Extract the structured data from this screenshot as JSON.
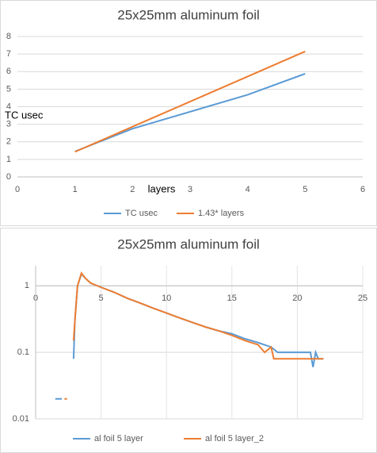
{
  "chart_data": [
    {
      "type": "line",
      "title": "25x25mm aluminum foil",
      "x_label": "layers",
      "y_label": "TC usec",
      "xlim": [
        0,
        6
      ],
      "xticks": [
        0,
        1,
        2,
        3,
        4,
        5,
        6
      ],
      "ylim": [
        0,
        8
      ],
      "yticks": [
        0,
        1,
        2,
        3,
        4,
        5,
        6,
        7,
        8
      ],
      "grid": true,
      "log_scale": false,
      "legend": "bottom",
      "series": [
        {
          "name": "TC usec",
          "color": "#5b9bd5",
          "x": [
            1,
            2,
            4,
            5
          ],
          "values": [
            1.45,
            2.75,
            4.68,
            5.88
          ]
        },
        {
          "name": "1.43* layers",
          "color": "#ed7d31",
          "x": [
            1,
            2,
            3,
            4,
            5
          ],
          "values": [
            1.43,
            2.86,
            4.29,
            5.72,
            7.15
          ]
        }
      ]
    },
    {
      "type": "line",
      "title": "25x25mm aluminum foil",
      "xlim": [
        0,
        25
      ],
      "xticks": [
        0,
        5,
        10,
        15,
        20,
        25
      ],
      "ylim": [
        0.01,
        2
      ],
      "yticks": [
        0.01,
        0.1,
        1
      ],
      "x_axis_crosses": 1,
      "grid": true,
      "log_scale": true,
      "legend": "bottom",
      "series": [
        {
          "name": "al foil 5 layer",
          "color": "#5b9bd5",
          "x": [
            1.5,
            2.0,
            2.5,
            2.9,
            3.0,
            3.2,
            3.5,
            3.8,
            4.2,
            5,
            6,
            7,
            8,
            9,
            10,
            11,
            12,
            13,
            14,
            15,
            16,
            17,
            18,
            18.5,
            19,
            20,
            21,
            21.2,
            21.4,
            21.6,
            22
          ],
          "values": [
            0.02,
            0.02,
            null,
            0.08,
            0.3,
            1.0,
            1.5,
            1.3,
            1.1,
            0.95,
            0.8,
            0.65,
            0.55,
            0.46,
            0.39,
            0.33,
            0.28,
            0.24,
            0.21,
            0.19,
            0.16,
            0.14,
            0.12,
            0.1,
            0.1,
            0.1,
            0.1,
            0.06,
            0.1,
            0.08,
            0.08
          ]
        },
        {
          "name": "al foil 5 layer_2",
          "color": "#ed7d31",
          "x": [
            2.2,
            2.4,
            2.6,
            2.9,
            3.0,
            3.2,
            3.5,
            3.8,
            4.2,
            5,
            6,
            7,
            8,
            9,
            10,
            11,
            12,
            13,
            14,
            15,
            16,
            17,
            17.5,
            18,
            18.2,
            19,
            20,
            21,
            22
          ],
          "values": [
            0.02,
            0.02,
            null,
            0.15,
            0.3,
            1.0,
            1.55,
            1.3,
            1.1,
            0.95,
            0.8,
            0.65,
            0.55,
            0.46,
            0.39,
            0.33,
            0.28,
            0.24,
            0.21,
            0.18,
            0.15,
            0.13,
            0.1,
            0.12,
            0.08,
            0.08,
            0.08,
            0.08,
            0.08
          ]
        }
      ]
    }
  ]
}
